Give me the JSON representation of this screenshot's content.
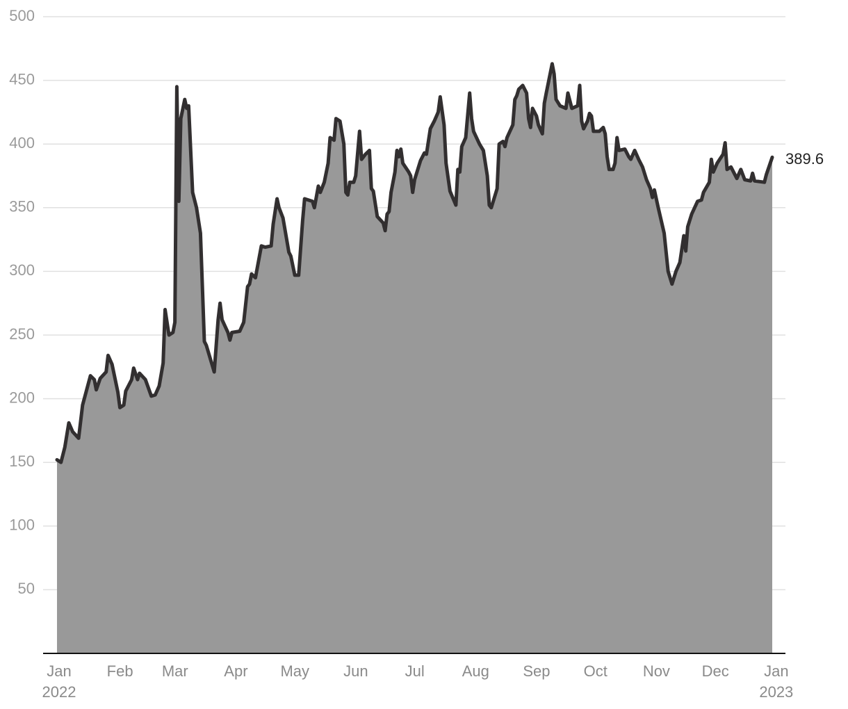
{
  "chart_data": {
    "type": "area",
    "x": [
      0,
      2,
      4,
      6,
      8,
      11,
      13,
      17,
      19,
      20,
      22,
      25,
      26,
      28,
      31,
      32,
      34,
      35,
      38,
      39,
      41,
      42,
      45,
      48,
      50,
      52,
      54,
      55,
      57,
      59,
      60,
      61,
      62,
      63,
      65,
      66,
      67,
      69,
      71,
      73,
      75,
      76,
      80,
      82,
      83,
      84,
      87,
      88,
      89,
      93,
      95,
      97,
      98,
      99,
      101,
      104,
      106,
      109,
      110,
      112,
      113,
      115,
      118,
      119,
      121,
      123,
      125,
      126,
      130,
      131,
      133,
      134,
      136,
      138,
      139,
      141,
      142,
      144,
      146,
      147,
      148,
      149,
      151,
      152,
      154,
      155,
      157,
      159,
      160,
      161,
      163,
      166,
      167,
      168,
      169,
      170,
      172,
      173,
      174,
      175,
      176,
      179,
      180,
      181,
      182,
      185,
      187,
      188,
      190,
      192,
      194,
      195,
      197,
      198,
      200,
      203,
      204,
      205,
      206,
      208,
      210,
      211,
      212,
      215,
      217,
      219,
      220,
      221,
      224,
      225,
      227,
      228,
      229,
      232,
      233,
      234,
      235,
      237,
      239,
      240,
      241,
      242,
      244,
      245,
      247,
      248,
      249,
      252,
      253,
      254,
      256,
      259,
      260,
      262,
      265,
      266,
      267,
      268,
      270,
      271,
      272,
      273,
      276,
      278,
      279,
      280,
      281,
      283,
      284,
      285,
      286,
      289,
      291,
      292,
      294,
      296,
      297,
      298,
      300,
      302,
      303,
      304,
      306,
      309,
      311,
      313,
      315,
      317,
      319,
      320,
      321,
      323,
      326,
      328,
      329,
      332,
      333,
      334,
      336,
      339,
      340,
      341,
      343,
      346,
      348,
      350,
      353,
      354,
      355,
      360,
      361,
      364
    ],
    "values": [
      152,
      150,
      162,
      181,
      174,
      169,
      195,
      218,
      215,
      207,
      216,
      221,
      234,
      227,
      205,
      193,
      195,
      206,
      215,
      224,
      215,
      220,
      215,
      202,
      203,
      210,
      228,
      270,
      250,
      252,
      260,
      445,
      355,
      420,
      435,
      428,
      430,
      362,
      350,
      330,
      245,
      242,
      221,
      262,
      275,
      262,
      252,
      246,
      252,
      253,
      260,
      288,
      290,
      298,
      295,
      320,
      319,
      320,
      337,
      357,
      350,
      342,
      315,
      312,
      297,
      297,
      340,
      357,
      355,
      350,
      367,
      362,
      370,
      385,
      405,
      403,
      420,
      418,
      400,
      362,
      360,
      370,
      370,
      375,
      410,
      388,
      392,
      395,
      365,
      363,
      343,
      338,
      332,
      345,
      347,
      362,
      378,
      395,
      390,
      396,
      385,
      378,
      375,
      362,
      372,
      387,
      393,
      392,
      412,
      418,
      425,
      437,
      415,
      385,
      363,
      352,
      380,
      378,
      398,
      405,
      440,
      420,
      410,
      400,
      395,
      375,
      352,
      350,
      365,
      400,
      402,
      398,
      405,
      415,
      435,
      438,
      443,
      446,
      440,
      420,
      413,
      428,
      422,
      415,
      408,
      432,
      440,
      463,
      455,
      435,
      430,
      428,
      440,
      428,
      430,
      446,
      418,
      412,
      418,
      424,
      422,
      410,
      410,
      413,
      408,
      390,
      380,
      380,
      385,
      405,
      395,
      396,
      390,
      388,
      395,
      388,
      385,
      382,
      372,
      365,
      358,
      364,
      350,
      330,
      300,
      290,
      300,
      307,
      328,
      316,
      335,
      345,
      355,
      356,
      362,
      370,
      388,
      378,
      385,
      392,
      401,
      380,
      382,
      373,
      380,
      372,
      371,
      377,
      371,
      370,
      376,
      389.6
    ],
    "color": "#999999",
    "line_color": "#322f30",
    "xlim": [
      0,
      364
    ],
    "xticks": [
      {
        "value": 0,
        "label": "Jan",
        "sublabel": "2022"
      },
      {
        "value": 31,
        "label": "Feb"
      },
      {
        "value": 59,
        "label": "Mar"
      },
      {
        "value": 90,
        "label": "Apr"
      },
      {
        "value": 120,
        "label": "May"
      },
      {
        "value": 151,
        "label": "Jun"
      },
      {
        "value": 181,
        "label": "Jul"
      },
      {
        "value": 212,
        "label": "Aug"
      },
      {
        "value": 243,
        "label": "Sep"
      },
      {
        "value": 273,
        "label": "Oct"
      },
      {
        "value": 304,
        "label": "Nov"
      },
      {
        "value": 334,
        "label": "Dec"
      },
      {
        "value": 365,
        "label": "Jan",
        "sublabel": "2023"
      }
    ],
    "ylim": [
      0,
      500
    ],
    "yticks": [
      50,
      100,
      150,
      200,
      250,
      300,
      350,
      400,
      450,
      500
    ],
    "grid": true
  }
}
